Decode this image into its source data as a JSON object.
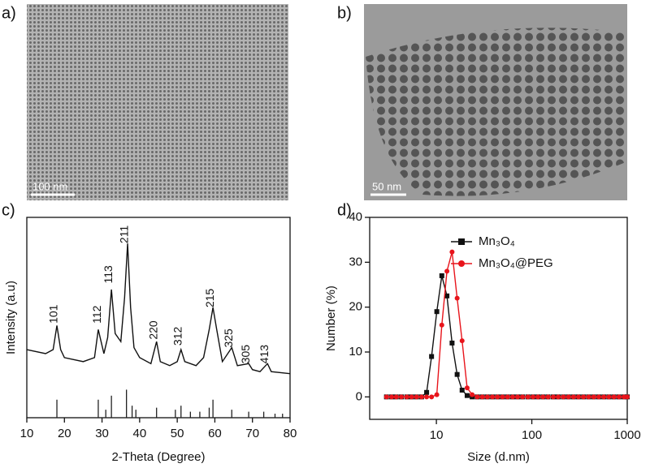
{
  "images": [
    {
      "label": "a)",
      "scale_bar": "100 nm"
    },
    {
      "label": "b)",
      "scale_bar": "50 nm"
    }
  ],
  "chart_data": [
    {
      "type": "line",
      "panel": "c)",
      "xlabel": "2-Theta (Degree)",
      "ylabel": "Intensity (a.u)",
      "xlim": [
        10,
        80
      ],
      "xticks": [
        10,
        20,
        30,
        40,
        50,
        60,
        70,
        80
      ],
      "ylim": [
        0,
        100
      ],
      "x": [
        10,
        15,
        17,
        18,
        19,
        20,
        25,
        28,
        29,
        30.5,
        31.5,
        32.5,
        33.5,
        35,
        36,
        36.8,
        37.6,
        38.5,
        40,
        43,
        44.5,
        45.5,
        48,
        50,
        51,
        52,
        55,
        57,
        58.5,
        59.5,
        60.5,
        62,
        64.5,
        66,
        69,
        70,
        72,
        74,
        75,
        80
      ],
      "series": [
        {
          "name": null,
          "color": "#111111",
          "values": [
            34,
            32,
            34,
            46,
            34,
            30,
            28,
            30,
            44,
            32,
            40,
            64,
            42,
            38,
            60,
            87,
            55,
            35,
            30,
            27,
            38,
            28,
            26,
            28,
            34,
            28,
            26,
            30,
            44,
            55,
            44,
            28,
            35,
            26,
            27,
            24,
            23,
            27,
            23,
            22
          ]
        }
      ],
      "annotations": [
        {
          "text": "101",
          "x": 18,
          "y": 47
        },
        {
          "text": "112",
          "x": 29.5,
          "y": 47
        },
        {
          "text": "113",
          "x": 32.5,
          "y": 67
        },
        {
          "text": "211",
          "x": 36.8,
          "y": 87
        },
        {
          "text": "220",
          "x": 44.5,
          "y": 39
        },
        {
          "text": "312",
          "x": 51,
          "y": 36
        },
        {
          "text": "215",
          "x": 59.5,
          "y": 55
        },
        {
          "text": "325",
          "x": 64.5,
          "y": 35
        },
        {
          "text": "305",
          "x": 69,
          "y": 27
        },
        {
          "text": "413",
          "x": 74,
          "y": 27
        }
      ],
      "reference": {
        "x": [
          18,
          29,
          31,
          32.5,
          36.5,
          38,
          39,
          44.5,
          49.5,
          51,
          53.5,
          56,
          58.5,
          59.5,
          64.5,
          69,
          73,
          76,
          78
        ],
        "values": [
          9,
          9,
          4,
          11,
          14,
          6,
          4,
          5,
          4,
          6,
          3,
          3,
          5,
          9,
          4,
          3,
          3,
          2,
          2
        ]
      }
    },
    {
      "type": "scatter-line",
      "panel": "d)",
      "xlabel": "Size (d.nm)",
      "ylabel": "Number (%)",
      "xscale": "log",
      "xlim": [
        2,
        1000
      ],
      "xticks": [
        10,
        100,
        1000
      ],
      "ylim": [
        -5,
        40
      ],
      "yticks": [
        0,
        10,
        20,
        30,
        40
      ],
      "legend": "upper left",
      "x": [
        3.0,
        3.4,
        3.8,
        4.3,
        4.9,
        5.5,
        6.2,
        7.0,
        7.9,
        8.9,
        10.1,
        11.4,
        12.9,
        14.6,
        16.5,
        18.6,
        21,
        23.7,
        26.8,
        30.3,
        34.2,
        38.7,
        43.7,
        49.3,
        55.7,
        63,
        71,
        80,
        91,
        103,
        116,
        131,
        148,
        168,
        189,
        214,
        242,
        273,
        308,
        348,
        394,
        445,
        503,
        568,
        642,
        725,
        819,
        925,
        1000
      ],
      "series": [
        {
          "name": "Mn₃O₄",
          "color": "#111111",
          "marker": "square",
          "values": [
            0,
            0,
            0,
            0,
            0,
            0,
            0,
            0,
            1,
            9,
            19,
            27,
            22.5,
            12,
            5,
            1.5,
            0.3,
            0,
            0,
            0,
            0,
            0,
            0,
            0,
            0,
            0,
            0,
            0,
            0,
            0,
            0,
            0,
            0,
            0,
            0,
            0,
            0,
            0,
            0,
            0,
            0,
            0,
            0,
            0,
            0,
            0,
            0,
            0,
            0
          ]
        },
        {
          "name": "Mn₃O₄@PEG",
          "color": "#e8141b",
          "marker": "circle",
          "values": [
            0,
            0,
            0,
            0,
            0,
            0,
            0,
            0,
            0,
            0,
            0.5,
            16,
            28,
            32.3,
            22,
            12.5,
            2,
            0.5,
            0,
            0,
            0,
            0,
            0,
            0,
            0,
            0,
            0,
            0,
            0,
            0,
            0,
            0,
            0,
            0,
            0,
            0,
            0,
            0,
            0,
            0,
            0,
            0,
            0,
            0,
            0,
            0,
            0,
            0,
            0
          ]
        }
      ]
    }
  ]
}
